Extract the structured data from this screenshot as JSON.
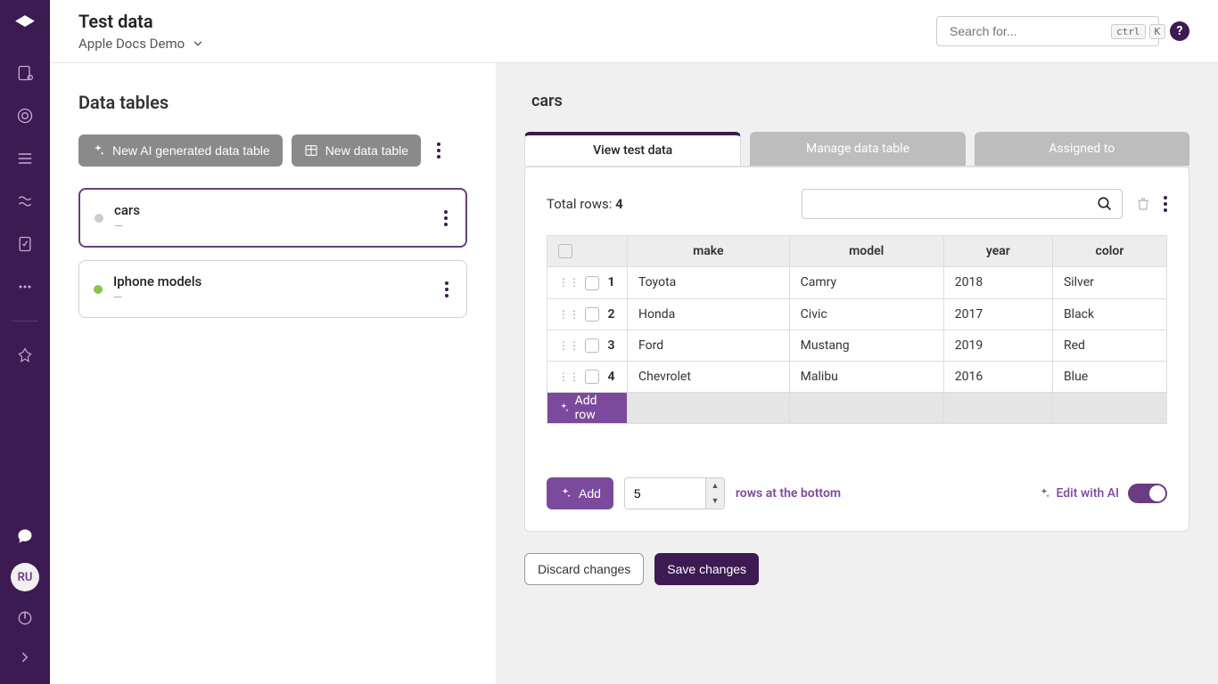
{
  "colors": {
    "sidebar_bg": "#3d1a52",
    "accent": "#7c4a9c",
    "accent_dark": "#6a3d82",
    "tab_inactive": "#bdbdbd",
    "status_green": "#8bc34a",
    "status_grey": "#cccccc"
  },
  "header": {
    "title": "Test data",
    "project": "Apple Docs Demo",
    "search_placeholder": "Search for...",
    "kbd1": "ctrl",
    "kbd2": "K"
  },
  "left": {
    "title": "Data tables",
    "new_ai_label": "New AI generated data table",
    "new_label": "New data table",
    "tables": [
      {
        "name": "cars",
        "sub": "—",
        "status": "grey",
        "selected": true
      },
      {
        "name": "Iphone models",
        "sub": "—",
        "status": "green",
        "selected": false
      }
    ]
  },
  "right": {
    "title": "cars",
    "tabs": [
      {
        "label": "View test data",
        "active": true
      },
      {
        "label": "Manage data table",
        "active": false
      },
      {
        "label": "Assigned to",
        "active": false
      }
    ],
    "total_rows_label": "Total rows: ",
    "total_rows": 4,
    "table": {
      "columns": [
        "make",
        "model",
        "year",
        "color"
      ],
      "rows": [
        [
          "Toyota",
          "Camry",
          "2018",
          "Silver"
        ],
        [
          "Honda",
          "Civic",
          "2017",
          "Black"
        ],
        [
          "Ford",
          "Mustang",
          "2019",
          "Red"
        ],
        [
          "Chevrolet",
          "Malibu",
          "2016",
          "Blue"
        ]
      ]
    },
    "add_row_label": "Add row",
    "add_bulk_label": "Add",
    "add_bulk_count": "5",
    "rows_at_bottom": "rows at the bottom",
    "edit_ai_label": "Edit with AI",
    "discard_label": "Discard changes",
    "save_label": "Save changes"
  },
  "avatar": "RU"
}
